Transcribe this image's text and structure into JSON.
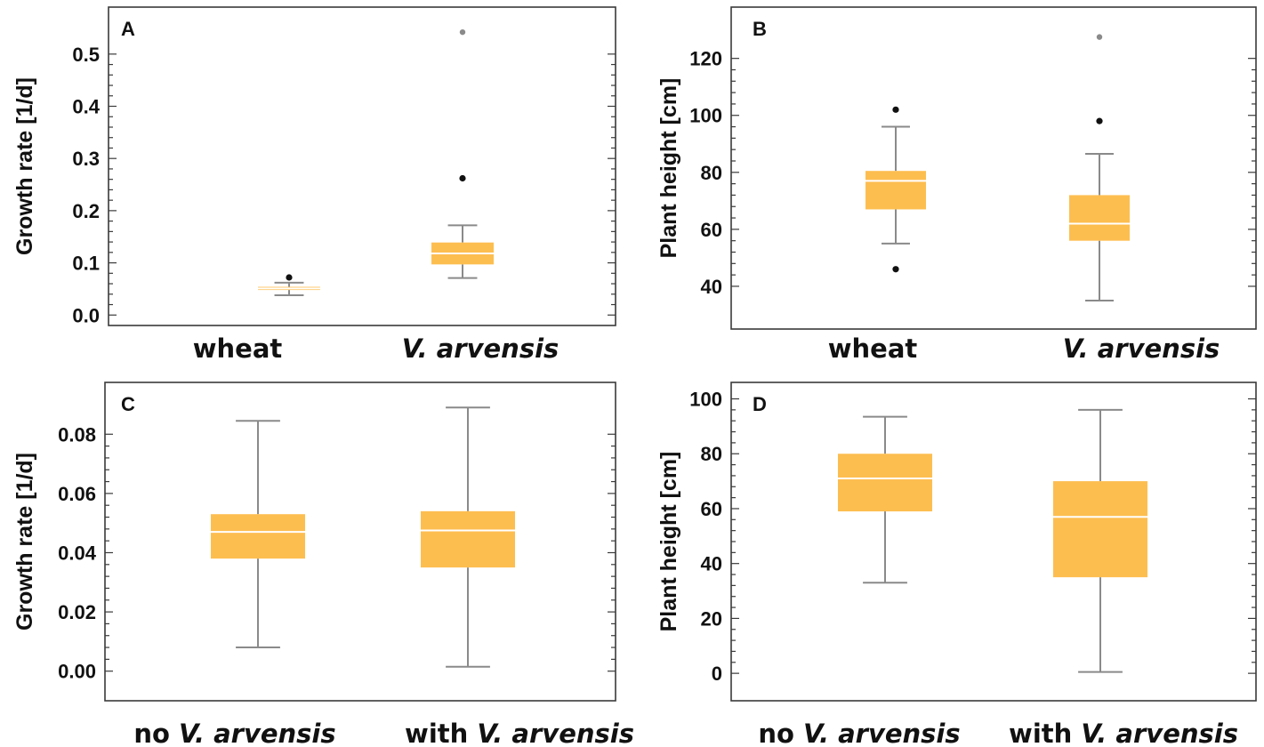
{
  "colors": {
    "box_fill": "#FDBE50",
    "median": "#ffffff",
    "whisker": "#8a8a8a",
    "frame": "#3a3a3a",
    "outlier_dark": "#111111",
    "outlier_grey": "#8a8a8a"
  },
  "chart_data": [
    {
      "panel": "A",
      "type": "box",
      "ylabel": "Growth rate [1/d]",
      "ylim": [
        -0.02,
        0.59
      ],
      "yticks": [
        "0.0",
        "0.1",
        "0.2",
        "0.3",
        "0.4",
        "0.5"
      ],
      "ytick_values": [
        0.0,
        0.1,
        0.2,
        0.3,
        0.4,
        0.5
      ],
      "categories": [
        {
          "label": "wheat",
          "italic": false
        },
        {
          "prefix": "",
          "italic_part": "V. arvensis"
        }
      ],
      "boxes": [
        {
          "min": 0.038,
          "q1": 0.048,
          "median": 0.051,
          "q3": 0.054,
          "max": 0.062,
          "outliers": [
            {
              "value": 0.072,
              "far": false
            }
          ]
        },
        {
          "min": 0.071,
          "q1": 0.097,
          "median": 0.118,
          "q3": 0.139,
          "max": 0.172,
          "outliers": [
            {
              "value": 0.262,
              "far": false
            },
            {
              "value": 0.542,
              "far": true
            }
          ]
        }
      ]
    },
    {
      "panel": "B",
      "type": "box",
      "ylabel": "Plant height [cm]",
      "ylim": [
        25,
        138
      ],
      "yticks": [
        "40",
        "60",
        "80",
        "100",
        "120"
      ],
      "ytick_values": [
        40,
        60,
        80,
        100,
        120
      ],
      "categories": [
        {
          "label": "wheat",
          "italic": false
        },
        {
          "prefix": "",
          "italic_part": "V. arvensis"
        }
      ],
      "boxes": [
        {
          "min": 55,
          "q1": 67,
          "median": 77,
          "q3": 80.5,
          "max": 96,
          "outliers": [
            {
              "value": 102,
              "far": false
            },
            {
              "value": 46,
              "far": false
            }
          ]
        },
        {
          "min": 35,
          "q1": 56,
          "median": 62,
          "q3": 72,
          "max": 86.5,
          "outliers": [
            {
              "value": 98,
              "far": false
            },
            {
              "value": 127.5,
              "far": true
            }
          ]
        }
      ]
    },
    {
      "panel": "C",
      "type": "box",
      "ylabel": "Growth rate [1/d]",
      "ylim": [
        -0.01,
        0.0975
      ],
      "yticks": [
        "0.00",
        "0.02",
        "0.04",
        "0.06",
        "0.08"
      ],
      "ytick_values": [
        0.0,
        0.02,
        0.04,
        0.06,
        0.08
      ],
      "categories": [
        {
          "prefix": "no ",
          "italic_part": "V. arvensis"
        },
        {
          "prefix": "with ",
          "italic_part": "V. arvensis"
        }
      ],
      "boxes": [
        {
          "min": 0.008,
          "q1": 0.038,
          "median": 0.047,
          "q3": 0.053,
          "max": 0.0845,
          "outliers": []
        },
        {
          "min": 0.0015,
          "q1": 0.035,
          "median": 0.0475,
          "q3": 0.054,
          "max": 0.089,
          "outliers": []
        }
      ]
    },
    {
      "panel": "D",
      "type": "box",
      "ylabel": "Plant height [cm]",
      "ylim": [
        -10,
        106
      ],
      "yticks": [
        "0",
        "20",
        "40",
        "60",
        "80",
        "100"
      ],
      "ytick_values": [
        0,
        20,
        40,
        60,
        80,
        100
      ],
      "categories": [
        {
          "prefix": "no ",
          "italic_part": "V. arvensis"
        },
        {
          "prefix": "with ",
          "italic_part": "V. arvensis"
        }
      ],
      "boxes": [
        {
          "min": 33,
          "q1": 59,
          "median": 71,
          "q3": 80,
          "max": 93.5,
          "outliers": []
        },
        {
          "min": 0.5,
          "q1": 35,
          "median": 57,
          "q3": 70,
          "max": 96,
          "outliers": []
        }
      ]
    }
  ]
}
